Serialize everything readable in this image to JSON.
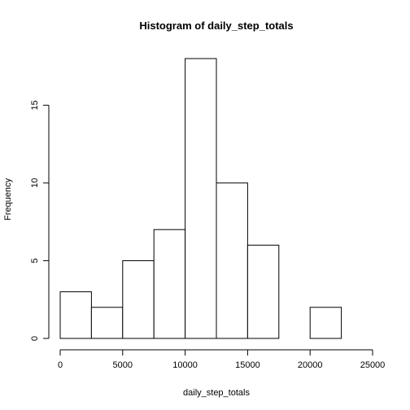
{
  "chart_data": {
    "type": "bar",
    "title": "Histogram of daily_step_totals",
    "xlabel": "daily_step_totals",
    "ylabel": "Frequency",
    "bin_edges": [
      0,
      2500,
      5000,
      7500,
      10000,
      12500,
      15000,
      17500,
      20000,
      22500,
      25000
    ],
    "values": [
      3,
      2,
      5,
      7,
      18,
      10,
      6,
      0,
      2,
      0
    ],
    "xlim": [
      0,
      25000
    ],
    "ylim": [
      0,
      18
    ],
    "x_ticks": [
      0,
      5000,
      10000,
      15000,
      20000,
      25000
    ],
    "y_ticks": [
      0,
      5,
      10,
      15
    ],
    "grid": false,
    "colors": {
      "bar_fill": "#ffffff",
      "bar_stroke": "#000000"
    }
  }
}
